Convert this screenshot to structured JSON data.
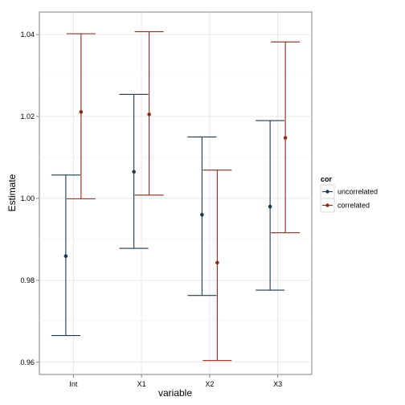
{
  "chart_data": {
    "type": "errorbar",
    "xlabel": "variable",
    "ylabel": "Estimate",
    "categories": [
      "Int",
      "X1",
      "X2",
      "X3"
    ],
    "ylim": [
      0.957,
      1.0455
    ],
    "yticks": [
      0.96,
      0.98,
      1.0,
      1.02,
      1.04
    ],
    "ytick_labels": [
      "0.96",
      "0.98",
      "1.00",
      "1.02",
      "1.04"
    ],
    "grid": true,
    "background": "#ffffff",
    "legend": {
      "title": "cor",
      "placement": "right"
    },
    "series": [
      {
        "name": "uncorrelated",
        "color": "#1b3a52",
        "estimates": [
          0.9859,
          1.0065,
          0.996,
          0.998
        ],
        "lower": [
          0.9665,
          0.9878,
          0.9763,
          0.9776
        ],
        "upper": [
          1.0057,
          1.0254,
          1.015,
          1.019
        ]
      },
      {
        "name": "correlated",
        "color": "#8b2a1a",
        "estimates": [
          1.0211,
          1.0205,
          0.9843,
          1.0148
        ],
        "lower": [
          0.9999,
          1.0008,
          0.9604,
          0.9916
        ],
        "upper": [
          1.0402,
          1.0407,
          1.0069,
          1.0382
        ]
      }
    ]
  }
}
